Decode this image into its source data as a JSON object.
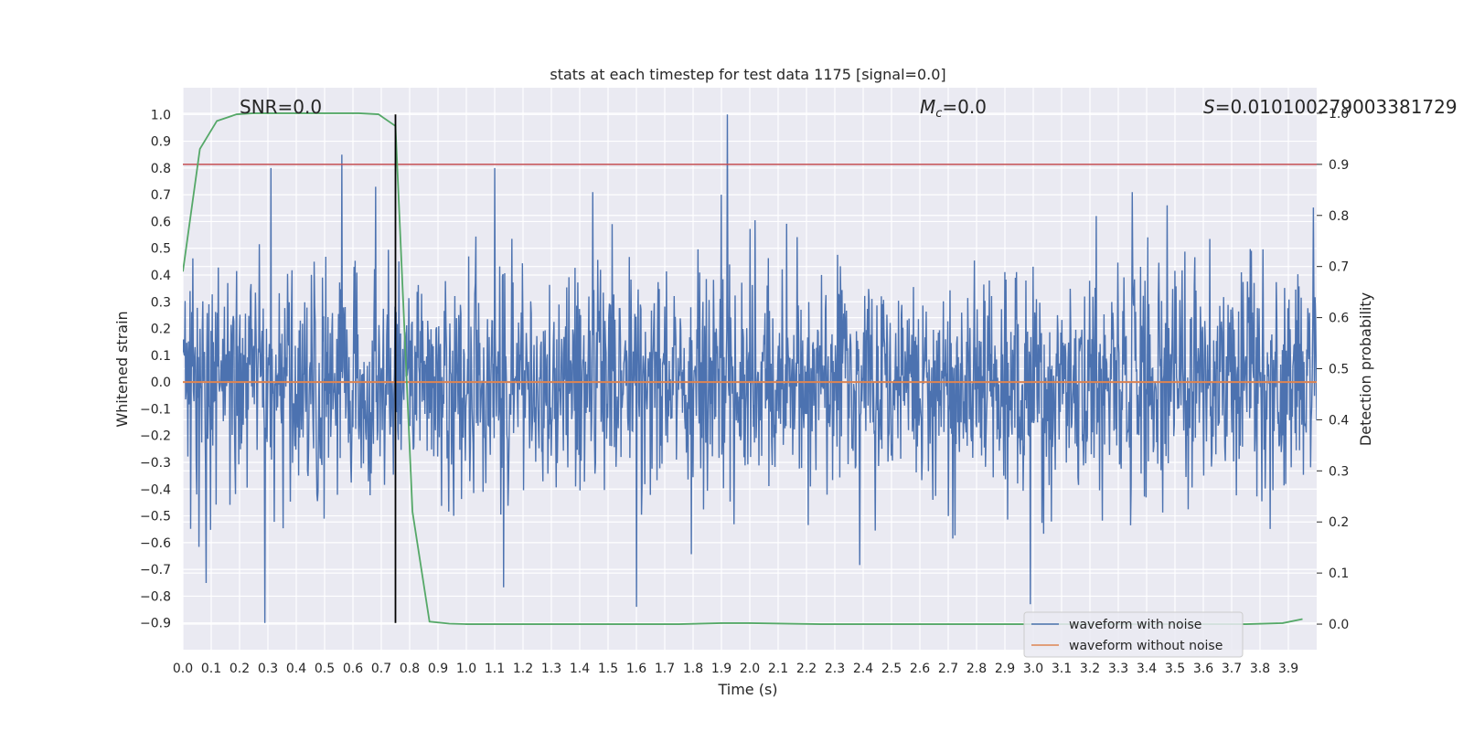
{
  "chart_data": {
    "type": "line",
    "title": "stats at each timestep for test data 1175 [signal=0.0]",
    "xlabel": "Time (s)",
    "ylabel": "Whitened strain",
    "y2label": "Detection probability",
    "xlim": [
      0.0,
      4.0
    ],
    "ylim": [
      -1.0,
      1.1
    ],
    "y2lim": [
      -0.05,
      1.05
    ],
    "x_ticks": [
      0.0,
      0.1,
      0.2,
      0.3,
      0.4,
      0.5,
      0.6,
      0.7,
      0.8,
      0.9,
      1.0,
      1.1,
      1.2,
      1.3,
      1.4,
      1.5,
      1.6,
      1.7,
      1.8,
      1.9,
      2.0,
      2.1,
      2.2,
      2.3,
      2.4,
      2.5,
      2.6,
      2.7,
      2.8,
      2.9,
      3.0,
      3.1,
      3.2,
      3.3,
      3.4,
      3.5,
      3.6,
      3.7,
      3.8,
      3.9
    ],
    "y_ticks": [
      1.0,
      0.9,
      0.8,
      0.7,
      0.6,
      0.5,
      0.4,
      0.3,
      0.2,
      0.1,
      0.0,
      -0.1,
      -0.2,
      -0.3,
      -0.4,
      -0.5,
      -0.6,
      -0.7,
      -0.8,
      -0.9
    ],
    "y2_ticks": [
      1.0,
      0.9,
      0.8,
      0.7,
      0.6,
      0.5,
      0.4,
      0.3,
      0.2,
      0.1,
      0.0
    ],
    "grid": true,
    "legend": "lower-right",
    "annotations": {
      "snr": "SNR=0.0",
      "mc_prefix": "M",
      "mc_sub": "c",
      "mc_value": "=0.0",
      "s_prefix": "S",
      "s_value": "=0.010100279003381729"
    },
    "threshold_line": {
      "y2": 0.9,
      "color": "#c44e52"
    },
    "marker_line": {
      "x": 0.75,
      "y_range": [
        -0.9,
        1.0
      ],
      "color": "#000000"
    },
    "series": [
      {
        "name": "waveform with noise",
        "color": "#4c72b0",
        "generator": {
          "seed": 1175,
          "samples": 2048,
          "sigma": 0.21,
          "clip": [
            -0.9,
            1.0
          ]
        },
        "spikes": [
          [
            0.29,
            -0.9
          ],
          [
            0.31,
            0.8
          ],
          [
            0.56,
            0.85
          ],
          [
            0.68,
            0.73
          ],
          [
            1.1,
            0.8
          ],
          [
            1.92,
            1.0
          ],
          [
            1.9,
            0.7
          ],
          [
            1.6,
            -0.84
          ],
          [
            2.99,
            -0.83
          ],
          [
            3.35,
            0.71
          ]
        ]
      },
      {
        "name": "waveform without noise",
        "color": "#dd8452",
        "x": [
          0.0,
          4.0
        ],
        "y": [
          0.0,
          0.0
        ]
      },
      {
        "name": "detection probability",
        "axis": "y2",
        "color": "#55a868",
        "x": [
          0.0,
          0.06,
          0.12,
          0.19,
          0.25,
          0.31,
          0.37,
          0.44,
          0.5,
          0.56,
          0.62,
          0.69,
          0.75,
          0.81,
          0.87,
          0.94,
          1.0,
          1.25,
          1.5,
          1.75,
          1.9,
          2.0,
          2.25,
          2.5,
          2.75,
          3.0,
          3.25,
          3.5,
          3.75,
          3.88,
          3.95
        ],
        "y": [
          0.69,
          0.93,
          0.985,
          0.998,
          1.0,
          1.0,
          1.0,
          1.0,
          1.0,
          1.0,
          1.0,
          0.998,
          0.975,
          0.22,
          0.005,
          0.001,
          0.0,
          0.0,
          0.0,
          0.0,
          0.002,
          0.002,
          0.0,
          0.0,
          0.0,
          0.0,
          0.0,
          0.0,
          0.0,
          0.002,
          0.01
        ]
      }
    ]
  }
}
